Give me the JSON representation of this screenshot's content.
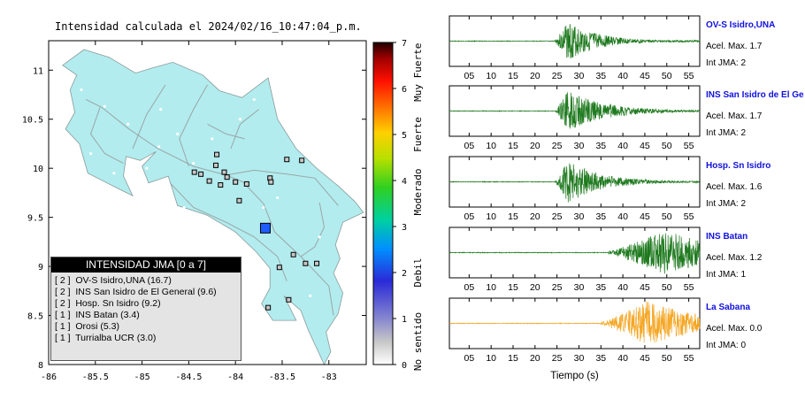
{
  "map": {
    "title": "Intensidad calculada el 2024/02/16_10:47:04_p.m.",
    "x_ticks": [
      "-86",
      "-85.5",
      "-85",
      "-84.5",
      "-84",
      "-83.5",
      "-83"
    ],
    "y_ticks": [
      "8",
      "8.5",
      "9",
      "9.5",
      "10",
      "10.5",
      "11"
    ],
    "legend": {
      "title": "INTENSIDAD JMA [0 a 7]",
      "items": [
        "[ 2 ]  OV-S Isidro,UNA (16.7)",
        "[ 2 ]  INS San Isidro de El General (9.6)",
        "[ 2 ]  Hosp. Sn Isidro (9.2)",
        "[ 1 ]  INS Batan (3.4)",
        "[ 1 ]  Orosi (5.3)",
        "[ 1 ]  Turrialba UCR (3.0)"
      ]
    }
  },
  "colorbar": {
    "ticks": [
      "0",
      "1",
      "2",
      "3",
      "4",
      "5",
      "6",
      "7"
    ],
    "labels": [
      "No sentido",
      "Debil",
      "Moderado",
      "Fuerte",
      "Muy Fuerte"
    ]
  },
  "chart_data": [
    {
      "type": "scatter",
      "xlabel": "",
      "ylabel": "",
      "xlim": [
        -86,
        -82.6
      ],
      "ylim": [
        8,
        11.3
      ],
      "colors": {
        "land": "#b2ecee",
        "epicenter": "#1f5cff",
        "station_fill": "#c8c8c8"
      },
      "epicenter": {
        "lon": -83.68,
        "lat": 9.39
      },
      "stations": [
        {
          "lon": -83.45,
          "lat": 10.09
        },
        {
          "lon": -83.29,
          "lat": 10.08
        },
        {
          "lon": -84.2,
          "lat": 10.14
        },
        {
          "lon": -84.44,
          "lat": 9.96
        },
        {
          "lon": -84.37,
          "lat": 9.94
        },
        {
          "lon": -84.12,
          "lat": 9.96
        },
        {
          "lon": -84.0,
          "lat": 9.86
        },
        {
          "lon": -83.88,
          "lat": 9.84
        },
        {
          "lon": -84.28,
          "lat": 9.87
        },
        {
          "lon": -84.16,
          "lat": 9.83
        },
        {
          "lon": -84.09,
          "lat": 9.91
        },
        {
          "lon": -83.63,
          "lat": 9.9
        },
        {
          "lon": -83.62,
          "lat": 9.86
        },
        {
          "lon": -83.96,
          "lat": 9.67
        },
        {
          "lon": -83.38,
          "lat": 9.12
        },
        {
          "lon": -83.25,
          "lat": 9.03
        },
        {
          "lon": -83.13,
          "lat": 9.03
        },
        {
          "lon": -83.53,
          "lat": 8.99
        },
        {
          "lon": -83.43,
          "lat": 8.66
        },
        {
          "lon": -83.65,
          "lat": 8.58
        },
        {
          "lon": -84.21,
          "lat": 10.03
        }
      ]
    },
    {
      "type": "line",
      "xlabel": "Tiempo (s)",
      "x_ticks": [
        "05",
        "10",
        "15",
        "20",
        "25",
        "30",
        "35",
        "40",
        "45",
        "50",
        "55"
      ],
      "traces": [
        {
          "name": "OV-S Isidro,UNA",
          "accel_label": "Acel. Max. 1.7",
          "int_label": "Int JMA: 2",
          "color": "#1f7a1f",
          "onset": 24.5,
          "peak": 27.5,
          "amp": 0.85,
          "decay": 7
        },
        {
          "name": "INS San Isidro de El Ge",
          "accel_label": "Acel. Max. 1.7",
          "int_label": "Int JMA: 2",
          "color": "#1f7a1f",
          "onset": 24.5,
          "peak": 27.5,
          "amp": 0.85,
          "decay": 9
        },
        {
          "name": "Hosp. Sn Isidro",
          "accel_label": "Acel. Max. 1.6",
          "int_label": "Int JMA: 2",
          "color": "#1f7a1f",
          "onset": 24.5,
          "peak": 27.5,
          "amp": 0.9,
          "decay": 8
        },
        {
          "name": "INS Batan",
          "accel_label": "Acel. Max. 1.2",
          "int_label": "Int JMA: 1",
          "color": "#1f7a1f",
          "onset": 36.5,
          "peak": 50,
          "amp": 0.95,
          "decay": 14
        },
        {
          "name": "La Sabana",
          "accel_label": "Acel. Max. 0.0",
          "int_label": "Int JMA: 0",
          "color": "#f5a623",
          "onset": 35,
          "peak": 45.5,
          "amp": 0.95,
          "decay": 14
        }
      ]
    }
  ]
}
